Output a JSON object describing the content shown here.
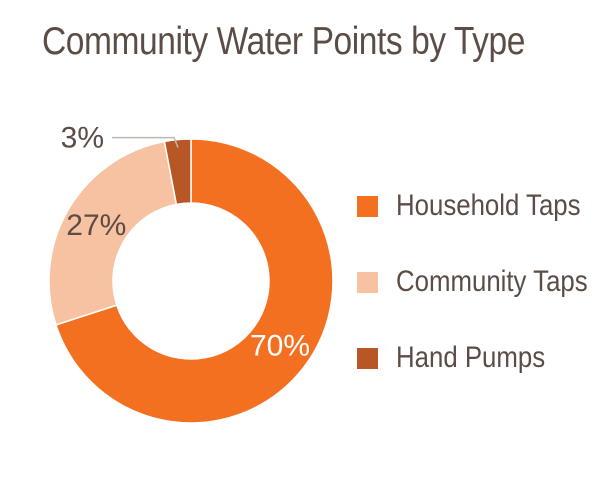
{
  "chart_data": {
    "type": "pie",
    "donut": true,
    "title": "Community Water Points by Type",
    "categories": [
      "Household Taps",
      "Community Taps",
      "Hand Pumps"
    ],
    "values": [
      70,
      27,
      3
    ],
    "labels": [
      "70%",
      "27%",
      "3%"
    ],
    "colors": [
      "#f37021",
      "#f7c2a2",
      "#b85726"
    ],
    "label_colors": [
      "#ffffff",
      "#5b4d45",
      "#5b4d45"
    ],
    "legend_position": "right"
  }
}
